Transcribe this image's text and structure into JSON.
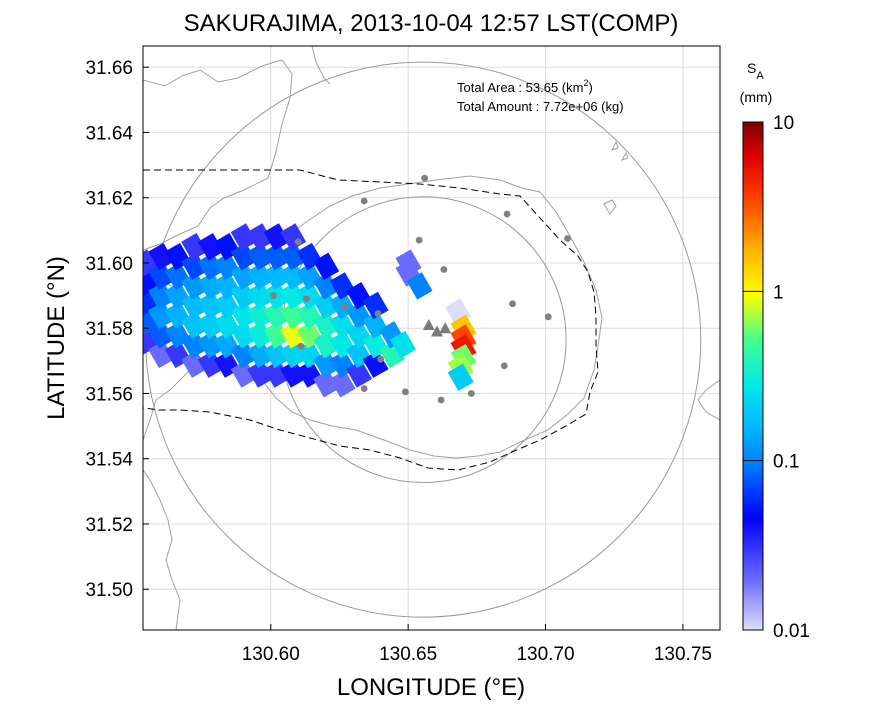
{
  "chart_data": {
    "type": "map",
    "title": "SAKURAJIMA, 2013-10-04 12:57 LST(COMP)",
    "xlabel": "LONGITUDE (°E)",
    "ylabel": "LATITUDE (°N)",
    "xlim": [
      130.5535,
      130.7635
    ],
    "ylim": [
      31.4875,
      31.6665
    ],
    "x_ticks": [
      {
        "value": 130.6,
        "label": "130.60"
      },
      {
        "value": 130.65,
        "label": "130.65"
      },
      {
        "value": 130.7,
        "label": "130.70"
      },
      {
        "value": 130.75,
        "label": "130.75"
      }
    ],
    "y_ticks": [
      {
        "value": 31.5,
        "label": "31.50"
      },
      {
        "value": 31.52,
        "label": "31.52"
      },
      {
        "value": 31.54,
        "label": "31.54"
      },
      {
        "value": 31.56,
        "label": "31.56"
      },
      {
        "value": 31.58,
        "label": "31.58"
      },
      {
        "value": 31.6,
        "label": "31.60"
      },
      {
        "value": 31.62,
        "label": "31.62"
      },
      {
        "value": 31.64,
        "label": "31.64"
      },
      {
        "value": 31.66,
        "label": "31.66"
      }
    ],
    "grid": true,
    "annotation": {
      "area_label": "Total Area   : 53.65 (km",
      "area_sup": "2",
      "area_tail": ")",
      "amount_label": "Total Amount : 7.72e+06 (kg)"
    },
    "colorbar": {
      "title": "S",
      "title_sub": "A",
      "unit": "(mm)",
      "scale": "log",
      "range": [
        0.01,
        10
      ],
      "ticks": [
        {
          "value": 10,
          "label": "10"
        },
        {
          "value": 1,
          "label": "1"
        },
        {
          "value": 0.1,
          "label": "0.1"
        },
        {
          "value": 0.01,
          "label": "0.01"
        }
      ]
    },
    "range_circles": [
      {
        "center": [
          130.6555,
          31.5765
        ],
        "radius_deg_lon": 0.101
      },
      {
        "center": [
          130.6555,
          31.5765
        ],
        "radius_deg_lon": 0.052
      }
    ],
    "volcano_vents": [
      [
        130.6575,
        31.581
      ],
      [
        130.6605,
        31.579
      ],
      [
        130.6635,
        31.58
      ]
    ],
    "stations": [
      [
        130.61,
        31.6065
      ],
      [
        130.634,
        31.619
      ],
      [
        130.656,
        31.626
      ],
      [
        130.686,
        31.615
      ],
      [
        130.708,
        31.6075
      ],
      [
        130.654,
        31.607
      ],
      [
        130.663,
        31.598
      ],
      [
        130.601,
        31.59
      ],
      [
        130.613,
        31.589
      ],
      [
        130.627,
        31.5865
      ],
      [
        130.639,
        31.5845
      ],
      [
        130.688,
        31.5875
      ],
      [
        130.701,
        31.5835
      ],
      [
        130.611,
        31.5745
      ],
      [
        130.64,
        31.5705
      ],
      [
        130.685,
        31.5685
      ],
      [
        130.634,
        31.5615
      ],
      [
        130.649,
        31.5605
      ],
      [
        130.662,
        31.558
      ],
      [
        130.673,
        31.56
      ]
    ],
    "ash_deposit_cells": [
      {
        "lon": 130.554,
        "lat": 31.576,
        "v": 0.03
      },
      {
        "lon": 130.554,
        "lat": 31.582,
        "v": 0.08
      },
      {
        "lon": 130.554,
        "lat": 31.588,
        "v": 0.06
      },
      {
        "lon": 130.554,
        "lat": 31.594,
        "v": 0.05
      },
      {
        "lon": 130.554,
        "lat": 31.6,
        "v": 0.03
      },
      {
        "lon": 130.56,
        "lat": 31.572,
        "v": 0.02
      },
      {
        "lon": 130.56,
        "lat": 31.578,
        "v": 0.08
      },
      {
        "lon": 130.56,
        "lat": 31.584,
        "v": 0.12
      },
      {
        "lon": 130.56,
        "lat": 31.59,
        "v": 0.1
      },
      {
        "lon": 130.56,
        "lat": 31.596,
        "v": 0.07
      },
      {
        "lon": 130.56,
        "lat": 31.602,
        "v": 0.04
      },
      {
        "lon": 130.566,
        "lat": 31.572,
        "v": 0.03
      },
      {
        "lon": 130.566,
        "lat": 31.578,
        "v": 0.1
      },
      {
        "lon": 130.566,
        "lat": 31.584,
        "v": 0.15
      },
      {
        "lon": 130.566,
        "lat": 31.59,
        "v": 0.13
      },
      {
        "lon": 130.566,
        "lat": 31.596,
        "v": 0.09
      },
      {
        "lon": 130.566,
        "lat": 31.602,
        "v": 0.05
      },
      {
        "lon": 130.572,
        "lat": 31.569,
        "v": 0.02
      },
      {
        "lon": 130.572,
        "lat": 31.575,
        "v": 0.1
      },
      {
        "lon": 130.572,
        "lat": 31.581,
        "v": 0.18
      },
      {
        "lon": 130.572,
        "lat": 31.587,
        "v": 0.16
      },
      {
        "lon": 130.572,
        "lat": 31.593,
        "v": 0.12
      },
      {
        "lon": 130.572,
        "lat": 31.599,
        "v": 0.07
      },
      {
        "lon": 130.572,
        "lat": 31.605,
        "v": 0.03
      },
      {
        "lon": 130.578,
        "lat": 31.569,
        "v": 0.03
      },
      {
        "lon": 130.578,
        "lat": 31.575,
        "v": 0.12
      },
      {
        "lon": 130.578,
        "lat": 31.581,
        "v": 0.2
      },
      {
        "lon": 130.578,
        "lat": 31.587,
        "v": 0.18
      },
      {
        "lon": 130.578,
        "lat": 31.593,
        "v": 0.14
      },
      {
        "lon": 130.578,
        "lat": 31.599,
        "v": 0.09
      },
      {
        "lon": 130.578,
        "lat": 31.605,
        "v": 0.04
      },
      {
        "lon": 130.584,
        "lat": 31.569,
        "v": 0.04
      },
      {
        "lon": 130.584,
        "lat": 31.575,
        "v": 0.14
      },
      {
        "lon": 130.584,
        "lat": 31.581,
        "v": 0.24
      },
      {
        "lon": 130.584,
        "lat": 31.587,
        "v": 0.2
      },
      {
        "lon": 130.584,
        "lat": 31.593,
        "v": 0.15
      },
      {
        "lon": 130.584,
        "lat": 31.599,
        "v": 0.1
      },
      {
        "lon": 130.584,
        "lat": 31.605,
        "v": 0.05
      },
      {
        "lon": 130.59,
        "lat": 31.566,
        "v": 0.02
      },
      {
        "lon": 130.59,
        "lat": 31.572,
        "v": 0.1
      },
      {
        "lon": 130.59,
        "lat": 31.578,
        "v": 0.24
      },
      {
        "lon": 130.59,
        "lat": 31.584,
        "v": 0.26
      },
      {
        "lon": 130.59,
        "lat": 31.59,
        "v": 0.2
      },
      {
        "lon": 130.59,
        "lat": 31.596,
        "v": 0.13
      },
      {
        "lon": 130.59,
        "lat": 31.602,
        "v": 0.07
      },
      {
        "lon": 130.59,
        "lat": 31.608,
        "v": 0.03
      },
      {
        "lon": 130.596,
        "lat": 31.566,
        "v": 0.03
      },
      {
        "lon": 130.596,
        "lat": 31.572,
        "v": 0.14
      },
      {
        "lon": 130.596,
        "lat": 31.578,
        "v": 0.3
      },
      {
        "lon": 130.596,
        "lat": 31.584,
        "v": 0.32
      },
      {
        "lon": 130.596,
        "lat": 31.59,
        "v": 0.24
      },
      {
        "lon": 130.596,
        "lat": 31.596,
        "v": 0.15
      },
      {
        "lon": 130.596,
        "lat": 31.602,
        "v": 0.08
      },
      {
        "lon": 130.596,
        "lat": 31.608,
        "v": 0.03
      },
      {
        "lon": 130.602,
        "lat": 31.566,
        "v": 0.03
      },
      {
        "lon": 130.602,
        "lat": 31.572,
        "v": 0.18
      },
      {
        "lon": 130.602,
        "lat": 31.578,
        "v": 0.5
      },
      {
        "lon": 130.602,
        "lat": 31.584,
        "v": 0.4
      },
      {
        "lon": 130.602,
        "lat": 31.59,
        "v": 0.26
      },
      {
        "lon": 130.602,
        "lat": 31.596,
        "v": 0.16
      },
      {
        "lon": 130.602,
        "lat": 31.602,
        "v": 0.08
      },
      {
        "lon": 130.602,
        "lat": 31.608,
        "v": 0.04
      },
      {
        "lon": 130.608,
        "lat": 31.566,
        "v": 0.04
      },
      {
        "lon": 130.608,
        "lat": 31.572,
        "v": 0.22
      },
      {
        "lon": 130.608,
        "lat": 31.578,
        "v": 0.9
      },
      {
        "lon": 130.608,
        "lat": 31.584,
        "v": 0.5
      },
      {
        "lon": 130.608,
        "lat": 31.59,
        "v": 0.28
      },
      {
        "lon": 130.608,
        "lat": 31.596,
        "v": 0.16
      },
      {
        "lon": 130.608,
        "lat": 31.602,
        "v": 0.08
      },
      {
        "lon": 130.608,
        "lat": 31.608,
        "v": 0.03
      },
      {
        "lon": 130.614,
        "lat": 31.566,
        "v": 0.04
      },
      {
        "lon": 130.614,
        "lat": 31.572,
        "v": 0.22
      },
      {
        "lon": 130.614,
        "lat": 31.578,
        "v": 0.6
      },
      {
        "lon": 130.614,
        "lat": 31.584,
        "v": 0.4
      },
      {
        "lon": 130.614,
        "lat": 31.59,
        "v": 0.24
      },
      {
        "lon": 130.614,
        "lat": 31.596,
        "v": 0.13
      },
      {
        "lon": 130.614,
        "lat": 31.602,
        "v": 0.06
      },
      {
        "lon": 130.62,
        "lat": 31.563,
        "v": 0.02
      },
      {
        "lon": 130.62,
        "lat": 31.569,
        "v": 0.12
      },
      {
        "lon": 130.62,
        "lat": 31.575,
        "v": 0.35
      },
      {
        "lon": 130.62,
        "lat": 31.581,
        "v": 0.35
      },
      {
        "lon": 130.62,
        "lat": 31.587,
        "v": 0.2
      },
      {
        "lon": 130.62,
        "lat": 31.593,
        "v": 0.1
      },
      {
        "lon": 130.62,
        "lat": 31.599,
        "v": 0.05
      },
      {
        "lon": 130.626,
        "lat": 31.563,
        "v": 0.02
      },
      {
        "lon": 130.626,
        "lat": 31.569,
        "v": 0.1
      },
      {
        "lon": 130.626,
        "lat": 31.575,
        "v": 0.28
      },
      {
        "lon": 130.626,
        "lat": 31.581,
        "v": 0.25
      },
      {
        "lon": 130.626,
        "lat": 31.587,
        "v": 0.14
      },
      {
        "lon": 130.626,
        "lat": 31.593,
        "v": 0.06
      },
      {
        "lon": 130.632,
        "lat": 31.566,
        "v": 0.03
      },
      {
        "lon": 130.632,
        "lat": 31.572,
        "v": 0.18
      },
      {
        "lon": 130.632,
        "lat": 31.578,
        "v": 0.22
      },
      {
        "lon": 130.632,
        "lat": 31.584,
        "v": 0.12
      },
      {
        "lon": 130.632,
        "lat": 31.59,
        "v": 0.05
      },
      {
        "lon": 130.638,
        "lat": 31.569,
        "v": 0.05
      },
      {
        "lon": 130.638,
        "lat": 31.575,
        "v": 0.3
      },
      {
        "lon": 130.638,
        "lat": 31.581,
        "v": 0.15
      },
      {
        "lon": 130.638,
        "lat": 31.587,
        "v": 0.06
      },
      {
        "lon": 130.644,
        "lat": 31.572,
        "v": 0.4
      },
      {
        "lon": 130.644,
        "lat": 31.578,
        "v": 0.12
      },
      {
        "lon": 130.648,
        "lat": 31.575,
        "v": 0.25
      },
      {
        "lon": 130.65,
        "lat": 31.6,
        "v": 0.02
      },
      {
        "lon": 130.65,
        "lat": 31.597,
        "v": 0.02
      },
      {
        "lon": 130.654,
        "lat": 31.593,
        "v": 0.1
      },
      {
        "lon": 130.668,
        "lat": 31.585,
        "v": 0.01
      },
      {
        "lon": 130.67,
        "lat": 31.58,
        "v": 1.5
      },
      {
        "lon": 130.67,
        "lat": 31.577,
        "v": 3.5
      },
      {
        "lon": 130.67,
        "lat": 31.574,
        "v": 5.0
      },
      {
        "lon": 130.67,
        "lat": 31.571,
        "v": 0.6
      },
      {
        "lon": 130.669,
        "lat": 31.568,
        "v": 0.7
      },
      {
        "lon": 130.669,
        "lat": 31.565,
        "v": 0.2
      }
    ]
  }
}
